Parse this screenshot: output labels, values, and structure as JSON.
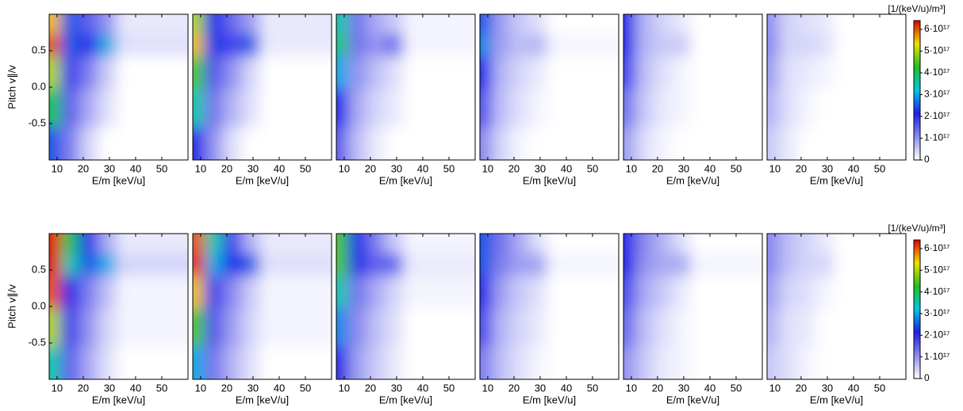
{
  "chart_data": [
    {
      "type": "contour",
      "ylabel": "Pitch v∥/v",
      "xlabel": "E/m [keV/u]",
      "xlim": [
        7,
        60
      ],
      "ylim": [
        -1,
        1
      ],
      "xticks": [
        10,
        20,
        30,
        40,
        50
      ],
      "yticks": [
        0.5,
        {
          "value": 0,
          "label": "0.0"
        },
        -0.5
      ],
      "x": [
        8,
        15,
        22,
        29,
        36
      ],
      "y": [
        0.85,
        0.6,
        0.25,
        -0.3,
        -0.8
      ],
      "z": [
        [
          5.5e+17,
          2.5e+17,
          1.5e+17,
          1e+17,
          2e+16
        ],
        [
          6e+17,
          2.5e+17,
          2e+17,
          3e+17,
          3e+16
        ],
        [
          5e+17,
          1.8e+17,
          1.2e+17,
          5e+16,
          0
        ],
        [
          4e+17,
          1.5e+17,
          8e+16,
          3e+16,
          0
        ],
        [
          2.5e+17,
          1.2e+17,
          4e+16,
          0,
          0
        ]
      ]
    },
    {
      "type": "contour",
      "xlabel": "E/m [keV/u]",
      "xlim": [
        7,
        60
      ],
      "ylim": [
        -1,
        1
      ],
      "xticks": [
        10,
        20,
        30,
        40,
        50
      ],
      "x": [
        8,
        15,
        22,
        29,
        36
      ],
      "y": [
        0.85,
        0.6,
        0.25,
        -0.3,
        -0.8
      ],
      "z": [
        [
          5e+17,
          2.2e+17,
          1.4e+17,
          9e+16,
          2e+16
        ],
        [
          5.5e+17,
          2.3e+17,
          1.8e+17,
          2.5e+17,
          2e+16
        ],
        [
          4.5e+17,
          1.6e+17,
          1e+17,
          4e+16,
          0
        ],
        [
          3.5e+17,
          1.3e+17,
          7e+16,
          3e+16,
          0
        ],
        [
          2.2e+17,
          1e+17,
          3e+16,
          0,
          0
        ]
      ]
    },
    {
      "type": "contour",
      "xlabel": "E/m [keV/u]",
      "xlim": [
        7,
        60
      ],
      "ylim": [
        -1,
        1
      ],
      "xticks": [
        10,
        20,
        30,
        40,
        50
      ],
      "x": [
        8,
        15,
        22,
        29,
        36
      ],
      "y": [
        0.85,
        0.6,
        0.25,
        -0.3,
        -0.8
      ],
      "z": [
        [
          3.5e+17,
          1.3e+17,
          8e+16,
          5e+16,
          1e+16
        ],
        [
          3.8e+17,
          1.3e+17,
          1e+17,
          1.4e+17,
          1e+16
        ],
        [
          3e+17,
          1e+17,
          6e+16,
          3e+16,
          0
        ],
        [
          2.2e+17,
          8e+16,
          4e+16,
          2e+16,
          0
        ],
        [
          1.5e+17,
          6e+16,
          2e+16,
          0,
          0
        ]
      ]
    },
    {
      "type": "contour",
      "xlabel": "E/m [keV/u]",
      "xlim": [
        7,
        60
      ],
      "ylim": [
        -1,
        1
      ],
      "xticks": [
        10,
        20,
        30,
        40,
        50
      ],
      "x": [
        8,
        15,
        22,
        29,
        36
      ],
      "y": [
        0.85,
        0.6,
        0.25,
        -0.3,
        -0.8
      ],
      "z": [
        [
          2.5e+17,
          9e+16,
          5e+16,
          3e+16,
          0
        ],
        [
          2.8e+17,
          9e+16,
          6e+16,
          7e+16,
          1e+16
        ],
        [
          2.2e+17,
          7e+16,
          4e+16,
          2e+16,
          0
        ],
        [
          1.6e+17,
          6e+16,
          3e+16,
          1e+16,
          0
        ],
        [
          1.1e+17,
          4e+16,
          1e+16,
          0,
          0
        ]
      ]
    },
    {
      "type": "contour",
      "xlabel": "E/m [keV/u]",
      "xlim": [
        7,
        60
      ],
      "ylim": [
        -1,
        1
      ],
      "xticks": [
        10,
        20,
        30,
        40,
        50
      ],
      "x": [
        8,
        15,
        22,
        29,
        36
      ],
      "y": [
        0.85,
        0.6,
        0.25,
        -0.3,
        -0.8
      ],
      "z": [
        [
          2e+17,
          7e+16,
          4e+16,
          2e+16,
          0
        ],
        [
          2.2e+17,
          7e+16,
          5e+16,
          5e+16,
          0
        ],
        [
          1.8e+17,
          6e+16,
          3e+16,
          1e+16,
          0
        ],
        [
          1.3e+17,
          5e+16,
          2e+16,
          1e+16,
          0
        ],
        [
          9e+16,
          3e+16,
          1e+16,
          0,
          0
        ]
      ]
    },
    {
      "type": "contour",
      "xlabel": "E/m [keV/u]",
      "xlim": [
        7,
        60
      ],
      "ylim": [
        -1,
        1
      ],
      "xticks": [
        10,
        20,
        30,
        40,
        50
      ],
      "x": [
        8,
        15,
        22,
        29,
        36
      ],
      "y": [
        0.85,
        0.6,
        0.25,
        -0.3,
        -0.8
      ],
      "z": [
        [
          1e+17,
          4e+16,
          3e+16,
          2e+16,
          0
        ],
        [
          1.1e+17,
          4e+16,
          4e+16,
          3e+16,
          0
        ],
        [
          9e+16,
          3e+16,
          2e+16,
          1e+16,
          0
        ],
        [
          7e+16,
          3e+16,
          1e+16,
          0,
          0
        ],
        [
          5e+16,
          2e+16,
          0,
          0,
          0
        ]
      ]
    },
    {
      "type": "contour",
      "ylabel": "Pitch v∥/v",
      "xlabel": "E/m [keV/u]",
      "xlim": [
        7,
        60
      ],
      "ylim": [
        -1,
        1
      ],
      "xticks": [
        10,
        20,
        30,
        40,
        50
      ],
      "yticks": [
        0.5,
        {
          "value": 0,
          "label": "0.0"
        },
        -0.5
      ],
      "x": [
        8,
        15,
        22,
        29,
        36
      ],
      "y": [
        0.85,
        0.6,
        0.25,
        -0.3,
        -0.8
      ],
      "z": [
        [
          6.5e+17,
          4e+17,
          2e+17,
          8e+16,
          2e+16
        ],
        [
          6.5e+17,
          3.5e+17,
          2.5e+17,
          3e+17,
          4e+16
        ],
        [
          6e+17,
          2e+17,
          1.2e+17,
          6e+16,
          1e+16
        ],
        [
          5e+17,
          1.8e+17,
          1e+17,
          4e+16,
          1e+16
        ],
        [
          3.5e+17,
          1.5e+17,
          8e+16,
          3e+16,
          0
        ]
      ]
    },
    {
      "type": "contour",
      "xlabel": "E/m [keV/u]",
      "xlim": [
        7,
        60
      ],
      "ylim": [
        -1,
        1
      ],
      "xticks": [
        10,
        20,
        30,
        40,
        50
      ],
      "x": [
        8,
        15,
        22,
        29,
        36
      ],
      "y": [
        0.85,
        0.6,
        0.25,
        -0.3,
        -0.8
      ],
      "z": [
        [
          6e+17,
          3.5e+17,
          1.8e+17,
          7e+16,
          2e+16
        ],
        [
          6.2e+17,
          3e+17,
          2.2e+17,
          2.5e+17,
          3e+16
        ],
        [
          5.5e+17,
          1.8e+17,
          1.1e+17,
          5e+16,
          1e+16
        ],
        [
          4.5e+17,
          1.6e+17,
          9e+16,
          4e+16,
          1e+16
        ],
        [
          3e+17,
          1.3e+17,
          7e+16,
          3e+16,
          0
        ]
      ]
    },
    {
      "type": "contour",
      "xlabel": "E/m [keV/u]",
      "xlim": [
        7,
        60
      ],
      "ylim": [
        -1,
        1
      ],
      "xticks": [
        10,
        20,
        30,
        40,
        50
      ],
      "x": [
        8,
        15,
        22,
        29,
        36
      ],
      "y": [
        0.85,
        0.6,
        0.25,
        -0.3,
        -0.8
      ],
      "z": [
        [
          4.5e+17,
          2.2e+17,
          1.2e+17,
          5e+16,
          1e+16
        ],
        [
          4.5e+17,
          2e+17,
          1.5e+17,
          1.5e+17,
          2e+16
        ],
        [
          3.5e+17,
          1.3e+17,
          8e+16,
          4e+16,
          1e+16
        ],
        [
          2.8e+17,
          1.1e+17,
          6e+16,
          3e+16,
          0
        ],
        [
          2e+17,
          9e+16,
          5e+16,
          2e+16,
          0
        ]
      ]
    },
    {
      "type": "contour",
      "xlabel": "E/m [keV/u]",
      "xlim": [
        7,
        60
      ],
      "ylim": [
        -1,
        1
      ],
      "xticks": [
        10,
        20,
        30,
        40,
        50
      ],
      "x": [
        8,
        15,
        22,
        29,
        36
      ],
      "y": [
        0.85,
        0.6,
        0.25,
        -0.3,
        -0.8
      ],
      "z": [
        [
          2.5e+17,
          1.3e+17,
          8e+16,
          3e+16,
          0
        ],
        [
          2.5e+17,
          1.2e+17,
          9e+16,
          9e+16,
          1e+16
        ],
        [
          2e+17,
          9e+16,
          5e+16,
          3e+16,
          0
        ],
        [
          1.7e+17,
          7e+16,
          4e+16,
          2e+16,
          0
        ],
        [
          1.2e+17,
          6e+16,
          3e+16,
          1e+16,
          0
        ]
      ]
    },
    {
      "type": "contour",
      "xlabel": "E/m [keV/u]",
      "xlim": [
        7,
        60
      ],
      "ylim": [
        -1,
        1
      ],
      "xticks": [
        10,
        20,
        30,
        40,
        50
      ],
      "x": [
        8,
        15,
        22,
        29,
        36
      ],
      "y": [
        0.85,
        0.6,
        0.25,
        -0.3,
        -0.8
      ],
      "z": [
        [
          2e+17,
          1.1e+17,
          7e+16,
          3e+16,
          0
        ],
        [
          2.1e+17,
          1e+17,
          8e+16,
          8e+16,
          1e+16
        ],
        [
          1.7e+17,
          8e+16,
          5e+16,
          2e+16,
          0
        ],
        [
          1.4e+17,
          6e+16,
          3e+16,
          1e+16,
          0
        ],
        [
          1e+17,
          5e+16,
          2e+16,
          1e+16,
          0
        ]
      ]
    },
    {
      "type": "contour",
      "xlabel": "E/m [keV/u]",
      "xlim": [
        7,
        60
      ],
      "ylim": [
        -1,
        1
      ],
      "xticks": [
        10,
        20,
        30,
        40,
        50
      ],
      "x": [
        8,
        15,
        22,
        29,
        36
      ],
      "y": [
        0.85,
        0.6,
        0.25,
        -0.3,
        -0.8
      ],
      "z": [
        [
          1.1e+17,
          6e+16,
          4e+16,
          2e+16,
          0
        ],
        [
          1.1e+17,
          6e+16,
          4e+16,
          4e+16,
          0
        ],
        [
          9e+16,
          4e+16,
          3e+16,
          1e+16,
          0
        ],
        [
          7e+16,
          3e+16,
          2e+16,
          0,
          0
        ],
        [
          5e+16,
          3e+16,
          1e+16,
          0,
          0
        ]
      ]
    },
    {
      "type": "colorbar",
      "label": "[1/(keV/u)/m³]",
      "zlim": [
        0,
        6.4e+17
      ],
      "colors": [
        "#ffffff",
        "#8c8cf0",
        "#1e1ee8",
        "#00c8e6",
        "#20c020",
        "#f0e000",
        "#e00000"
      ],
      "ticks": [
        {
          "value": 6e+17,
          "label": "6·10¹⁷"
        },
        {
          "value": 5e+17,
          "label": "5·10¹⁷"
        },
        {
          "value": 4e+17,
          "label": "4·10¹⁷"
        },
        {
          "value": 3e+17,
          "label": "3·10¹⁷"
        },
        {
          "value": 2e+17,
          "label": "2·10¹⁷"
        },
        {
          "value": 1e+17,
          "label": "1·10¹⁷"
        },
        0
      ]
    },
    {
      "type": "colorbar",
      "label": "[1/(keV/u)/m³]",
      "zlim": [
        0,
        6.4e+17
      ],
      "colors": [
        "#ffffff",
        "#8c8cf0",
        "#1e1ee8",
        "#00c8e6",
        "#20c020",
        "#f0e000",
        "#e00000"
      ],
      "ticks": [
        {
          "value": 6e+17,
          "label": "6·10¹⁷"
        },
        {
          "value": 5e+17,
          "label": "5·10¹⁷"
        },
        {
          "value": 4e+17,
          "label": "4·10¹⁷"
        },
        {
          "value": 3e+17,
          "label": "3·10¹⁷"
        },
        {
          "value": 2e+17,
          "label": "2·10¹⁷"
        },
        {
          "value": 1e+17,
          "label": "1·10¹⁷"
        },
        0
      ]
    }
  ]
}
